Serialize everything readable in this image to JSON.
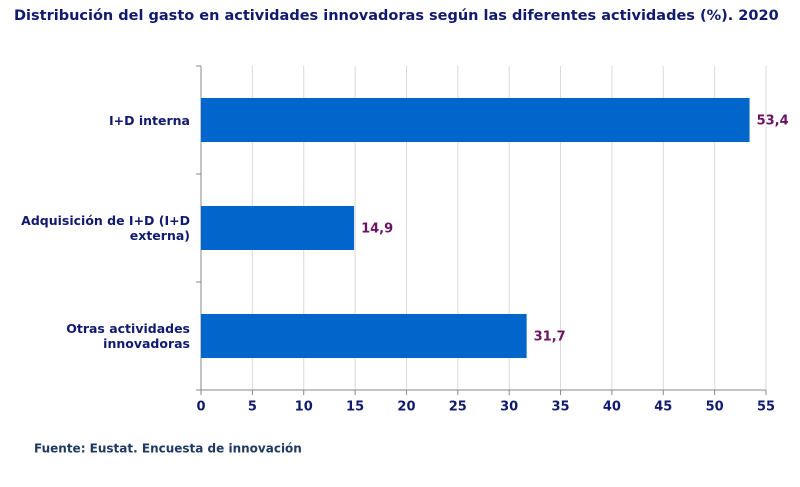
{
  "chart_data": {
    "type": "hbar",
    "title": "Distribución del gasto en actividades innovadoras según las diferentes actividades (%). 2020",
    "categories": [
      "I+D interna",
      "Adquisición de I+D (I+D externa)",
      "Otras actividades innovadoras"
    ],
    "values": [
      53.4,
      14.9,
      31.7
    ],
    "value_labels": [
      "53,4",
      "14,9",
      "31,7"
    ],
    "color": "#0066cc",
    "xlim": [
      0,
      55
    ],
    "xticks": [
      0,
      5,
      10,
      15,
      20,
      25,
      30,
      35,
      40,
      45,
      50,
      55
    ],
    "grid": true,
    "source": "Fuente: Eustat. Encuesta de innovación"
  }
}
